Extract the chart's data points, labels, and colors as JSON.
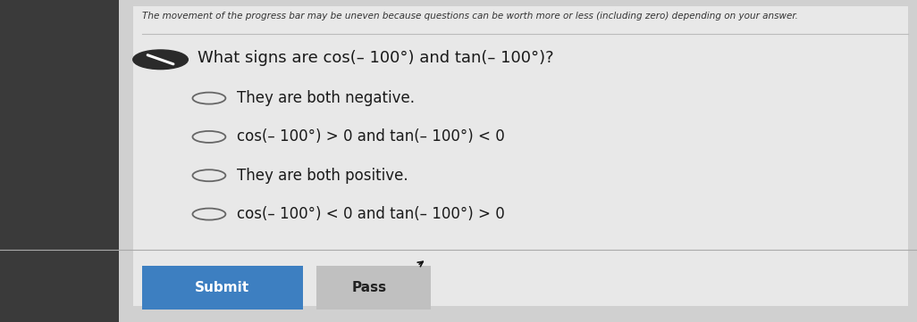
{
  "background_color": "#d0d0d0",
  "panel_color": "#e8e8e8",
  "top_note": "The movement of the progress bar may be uneven because questions can be worth more or less (including zero) depending on your answer.",
  "question": "What signs are cos(– 100°) and tan(– 100°)?",
  "options": [
    "They are both negative.",
    "cos(– 100°) > 0 and tan(– 100°) < 0",
    "They are both positive.",
    "cos(– 100°) < 0 and tan(– 100°) > 0"
  ],
  "submit_bg": "#3d7fc1",
  "submit_text": "Submit",
  "pass_bg": "#c0c0c0",
  "pass_text": "Pass",
  "note_fontsize": 7.5,
  "question_fontsize": 13,
  "option_fontsize": 12,
  "submit_fontsize": 11,
  "text_color": "#1a1a1a",
  "radio_color": "#666666",
  "sidebar_color": "#3a3a3a",
  "sep_color": "#bbbbbb"
}
